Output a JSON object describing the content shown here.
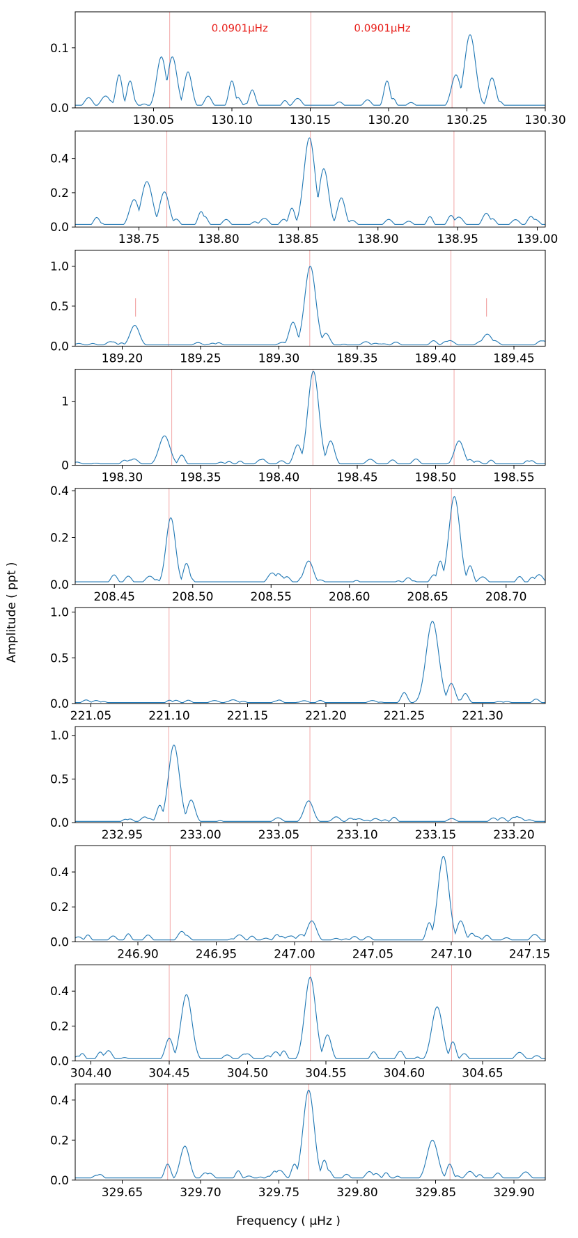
{
  "figure": {
    "xlabel": "Frequency ( μHz )",
    "ylabel": "Amplitude ( ppt )"
  },
  "colors": {
    "line": "#1f77b4",
    "marker": "#f2a7a7",
    "annotation": "#e8211c",
    "axis": "#000000"
  },
  "chart_data": [
    {
      "type": "line",
      "title": "",
      "xlim": [
        130.0,
        130.3
      ],
      "ylim": [
        0,
        0.16
      ],
      "xticks": [
        "130.05",
        "130.10",
        "130.15",
        "130.20",
        "130.25",
        "130.30"
      ],
      "yticks": [
        "0.0",
        "0.1"
      ],
      "vlines": [
        130.0603,
        130.1504,
        130.2405
      ],
      "annotations": [
        {
          "text": "0.0901μHz",
          "x": 130.105,
          "y": 0.127
        },
        {
          "text": "0.0901μHz",
          "x": 130.196,
          "y": 0.127
        }
      ],
      "peaks": [
        {
          "x": 130.028,
          "a": 0.055,
          "w": 0.002
        },
        {
          "x": 130.035,
          "a": 0.045,
          "w": 0.002
        },
        {
          "x": 130.055,
          "a": 0.085,
          "w": 0.003
        },
        {
          "x": 130.062,
          "a": 0.085,
          "w": 0.003
        },
        {
          "x": 130.072,
          "a": 0.06,
          "w": 0.0025
        },
        {
          "x": 130.1,
          "a": 0.045,
          "w": 0.002
        },
        {
          "x": 130.113,
          "a": 0.03,
          "w": 0.002
        },
        {
          "x": 130.199,
          "a": 0.045,
          "w": 0.002
        },
        {
          "x": 130.243,
          "a": 0.055,
          "w": 0.003
        },
        {
          "x": 130.252,
          "a": 0.122,
          "w": 0.0035
        },
        {
          "x": 130.266,
          "a": 0.05,
          "w": 0.0025
        }
      ],
      "noise": 0.02
    },
    {
      "type": "line",
      "title": "",
      "xlim": [
        138.71,
        139.005
      ],
      "ylim": [
        0,
        0.56
      ],
      "xticks": [
        "138.75",
        "138.80",
        "138.85",
        "138.90",
        "138.95",
        "139.00"
      ],
      "yticks": [
        "0.0",
        "0.2",
        "0.4"
      ],
      "vlines": [
        138.7675,
        138.8576,
        138.9477
      ],
      "annotations": [],
      "peaks": [
        {
          "x": 138.747,
          "a": 0.16,
          "w": 0.003
        },
        {
          "x": 138.755,
          "a": 0.265,
          "w": 0.0035
        },
        {
          "x": 138.766,
          "a": 0.205,
          "w": 0.003
        },
        {
          "x": 138.789,
          "a": 0.09,
          "w": 0.002
        },
        {
          "x": 138.846,
          "a": 0.11,
          "w": 0.002
        },
        {
          "x": 138.857,
          "a": 0.52,
          "w": 0.0035
        },
        {
          "x": 138.866,
          "a": 0.34,
          "w": 0.003
        },
        {
          "x": 138.877,
          "a": 0.17,
          "w": 0.0025
        },
        {
          "x": 138.968,
          "a": 0.08,
          "w": 0.0025
        }
      ],
      "noise": 0.07
    },
    {
      "type": "line",
      "title": "",
      "xlim": [
        189.17,
        189.47
      ],
      "ylim": [
        0,
        1.2
      ],
      "xticks": [
        "189.20",
        "189.25",
        "189.30",
        "189.35",
        "189.40",
        "189.45"
      ],
      "yticks": [
        "0.0",
        "0.5",
        "1.0"
      ],
      "vlines": [
        189.2296,
        189.3197,
        189.4098
      ],
      "short_vlines": [
        {
          "x": 189.2085,
          "y0": 0.37,
          "y1": 0.6
        },
        {
          "x": 189.4325,
          "y0": 0.37,
          "y1": 0.6
        }
      ],
      "annotations": [],
      "peaks": [
        {
          "x": 189.208,
          "a": 0.26,
          "w": 0.003
        },
        {
          "x": 189.309,
          "a": 0.3,
          "w": 0.0025
        },
        {
          "x": 189.32,
          "a": 1.0,
          "w": 0.0035
        },
        {
          "x": 189.33,
          "a": 0.16,
          "w": 0.0025
        },
        {
          "x": 189.433,
          "a": 0.15,
          "w": 0.003
        }
      ],
      "noise": 0.07
    },
    {
      "type": "line",
      "title": "",
      "xlim": [
        198.27,
        198.57
      ],
      "ylim": [
        0,
        1.5
      ],
      "xticks": [
        "198.30",
        "198.35",
        "198.40",
        "198.45",
        "198.50",
        "198.55"
      ],
      "yticks": [
        "0",
        "1"
      ],
      "vlines": [
        198.3316,
        198.4217,
        198.5118
      ],
      "annotations": [],
      "peaks": [
        {
          "x": 198.327,
          "a": 0.46,
          "w": 0.0035
        },
        {
          "x": 198.338,
          "a": 0.16,
          "w": 0.002
        },
        {
          "x": 198.412,
          "a": 0.32,
          "w": 0.0025
        },
        {
          "x": 198.422,
          "a": 1.47,
          "w": 0.0035
        },
        {
          "x": 198.433,
          "a": 0.38,
          "w": 0.0025
        },
        {
          "x": 198.515,
          "a": 0.38,
          "w": 0.003
        }
      ],
      "noise": 0.1
    },
    {
      "type": "line",
      "title": "",
      "xlim": [
        208.425,
        208.725
      ],
      "ylim": [
        0,
        0.41
      ],
      "xticks": [
        "208.45",
        "208.50",
        "208.55",
        "208.60",
        "208.65",
        "208.70"
      ],
      "yticks": [
        "0.0",
        "0.2",
        "0.4"
      ],
      "vlines": [
        208.4849,
        208.575,
        208.6651
      ],
      "annotations": [],
      "peaks": [
        {
          "x": 208.486,
          "a": 0.285,
          "w": 0.003
        },
        {
          "x": 208.496,
          "a": 0.09,
          "w": 0.002
        },
        {
          "x": 208.574,
          "a": 0.1,
          "w": 0.003
        },
        {
          "x": 208.658,
          "a": 0.1,
          "w": 0.002
        },
        {
          "x": 208.667,
          "a": 0.375,
          "w": 0.0035
        },
        {
          "x": 208.677,
          "a": 0.08,
          "w": 0.002
        }
      ],
      "noise": 0.05
    },
    {
      "type": "line",
      "title": "",
      "xlim": [
        221.04,
        221.34
      ],
      "ylim": [
        0,
        1.05
      ],
      "xticks": [
        "221.05",
        "221.10",
        "221.15",
        "221.20",
        "221.25",
        "221.30"
      ],
      "yticks": [
        "0.0",
        "0.5",
        "1.0"
      ],
      "vlines": [
        221.0999,
        221.19,
        221.2801
      ],
      "annotations": [],
      "peaks": [
        {
          "x": 221.25,
          "a": 0.12,
          "w": 0.002
        },
        {
          "x": 221.268,
          "a": 0.9,
          "w": 0.004
        },
        {
          "x": 221.28,
          "a": 0.22,
          "w": 0.0025
        },
        {
          "x": 221.289,
          "a": 0.11,
          "w": 0.002
        }
      ],
      "noise": 0.05
    },
    {
      "type": "line",
      "title": "",
      "xlim": [
        232.92,
        233.22
      ],
      "ylim": [
        0,
        1.1
      ],
      "xticks": [
        "232.95",
        "233.00",
        "233.05",
        "233.10",
        "233.15",
        "233.20"
      ],
      "yticks": [
        "0.0",
        "0.5",
        "1.0"
      ],
      "vlines": [
        232.9797,
        233.0698,
        233.1599
      ],
      "annotations": [],
      "peaks": [
        {
          "x": 232.974,
          "a": 0.2,
          "w": 0.002
        },
        {
          "x": 232.983,
          "a": 0.89,
          "w": 0.0035
        },
        {
          "x": 232.994,
          "a": 0.26,
          "w": 0.0025
        },
        {
          "x": 233.069,
          "a": 0.25,
          "w": 0.003
        }
      ],
      "noise": 0.07
    },
    {
      "type": "line",
      "title": "",
      "xlim": [
        246.86,
        247.16
      ],
      "ylim": [
        0,
        0.55
      ],
      "xticks": [
        "246.90",
        "246.95",
        "247.00",
        "247.05",
        "247.10",
        "247.15"
      ],
      "yticks": [
        "0.0",
        "0.2",
        "0.4"
      ],
      "vlines": [
        246.9206,
        247.0107,
        247.1008
      ],
      "annotations": [],
      "peaks": [
        {
          "x": 246.928,
          "a": 0.06,
          "w": 0.0025
        },
        {
          "x": 247.011,
          "a": 0.12,
          "w": 0.003
        },
        {
          "x": 247.086,
          "a": 0.11,
          "w": 0.002
        },
        {
          "x": 247.095,
          "a": 0.49,
          "w": 0.0035
        },
        {
          "x": 247.106,
          "a": 0.12,
          "w": 0.0025
        }
      ],
      "noise": 0.05
    },
    {
      "type": "line",
      "title": "",
      "xlim": [
        304.39,
        304.69
      ],
      "ylim": [
        0,
        0.55
      ],
      "xticks": [
        "304.40",
        "304.45",
        "304.50",
        "304.55",
        "304.60",
        "304.65"
      ],
      "yticks": [
        "0.0",
        "0.2",
        "0.4"
      ],
      "vlines": [
        304.45,
        304.5401,
        304.6302
      ],
      "annotations": [],
      "peaks": [
        {
          "x": 304.45,
          "a": 0.13,
          "w": 0.0025
        },
        {
          "x": 304.461,
          "a": 0.38,
          "w": 0.0035
        },
        {
          "x": 304.54,
          "a": 0.48,
          "w": 0.0035
        },
        {
          "x": 304.551,
          "a": 0.15,
          "w": 0.0025
        },
        {
          "x": 304.621,
          "a": 0.31,
          "w": 0.0035
        },
        {
          "x": 304.631,
          "a": 0.11,
          "w": 0.002
        }
      ],
      "noise": 0.06
    },
    {
      "type": "line",
      "title": "",
      "xlim": [
        329.62,
        329.92
      ],
      "ylim": [
        0,
        0.48
      ],
      "xticks": [
        "329.65",
        "329.70",
        "329.75",
        "329.80",
        "329.85",
        "329.90"
      ],
      "yticks": [
        "0.0",
        "0.2",
        "0.4"
      ],
      "vlines": [
        329.679,
        329.7691,
        329.8592
      ],
      "annotations": [],
      "peaks": [
        {
          "x": 329.679,
          "a": 0.08,
          "w": 0.002
        },
        {
          "x": 329.69,
          "a": 0.17,
          "w": 0.003
        },
        {
          "x": 329.76,
          "a": 0.08,
          "w": 0.002
        },
        {
          "x": 329.769,
          "a": 0.45,
          "w": 0.0035
        },
        {
          "x": 329.779,
          "a": 0.1,
          "w": 0.002
        },
        {
          "x": 329.848,
          "a": 0.2,
          "w": 0.0035
        },
        {
          "x": 329.859,
          "a": 0.08,
          "w": 0.002
        }
      ],
      "noise": 0.05
    }
  ]
}
